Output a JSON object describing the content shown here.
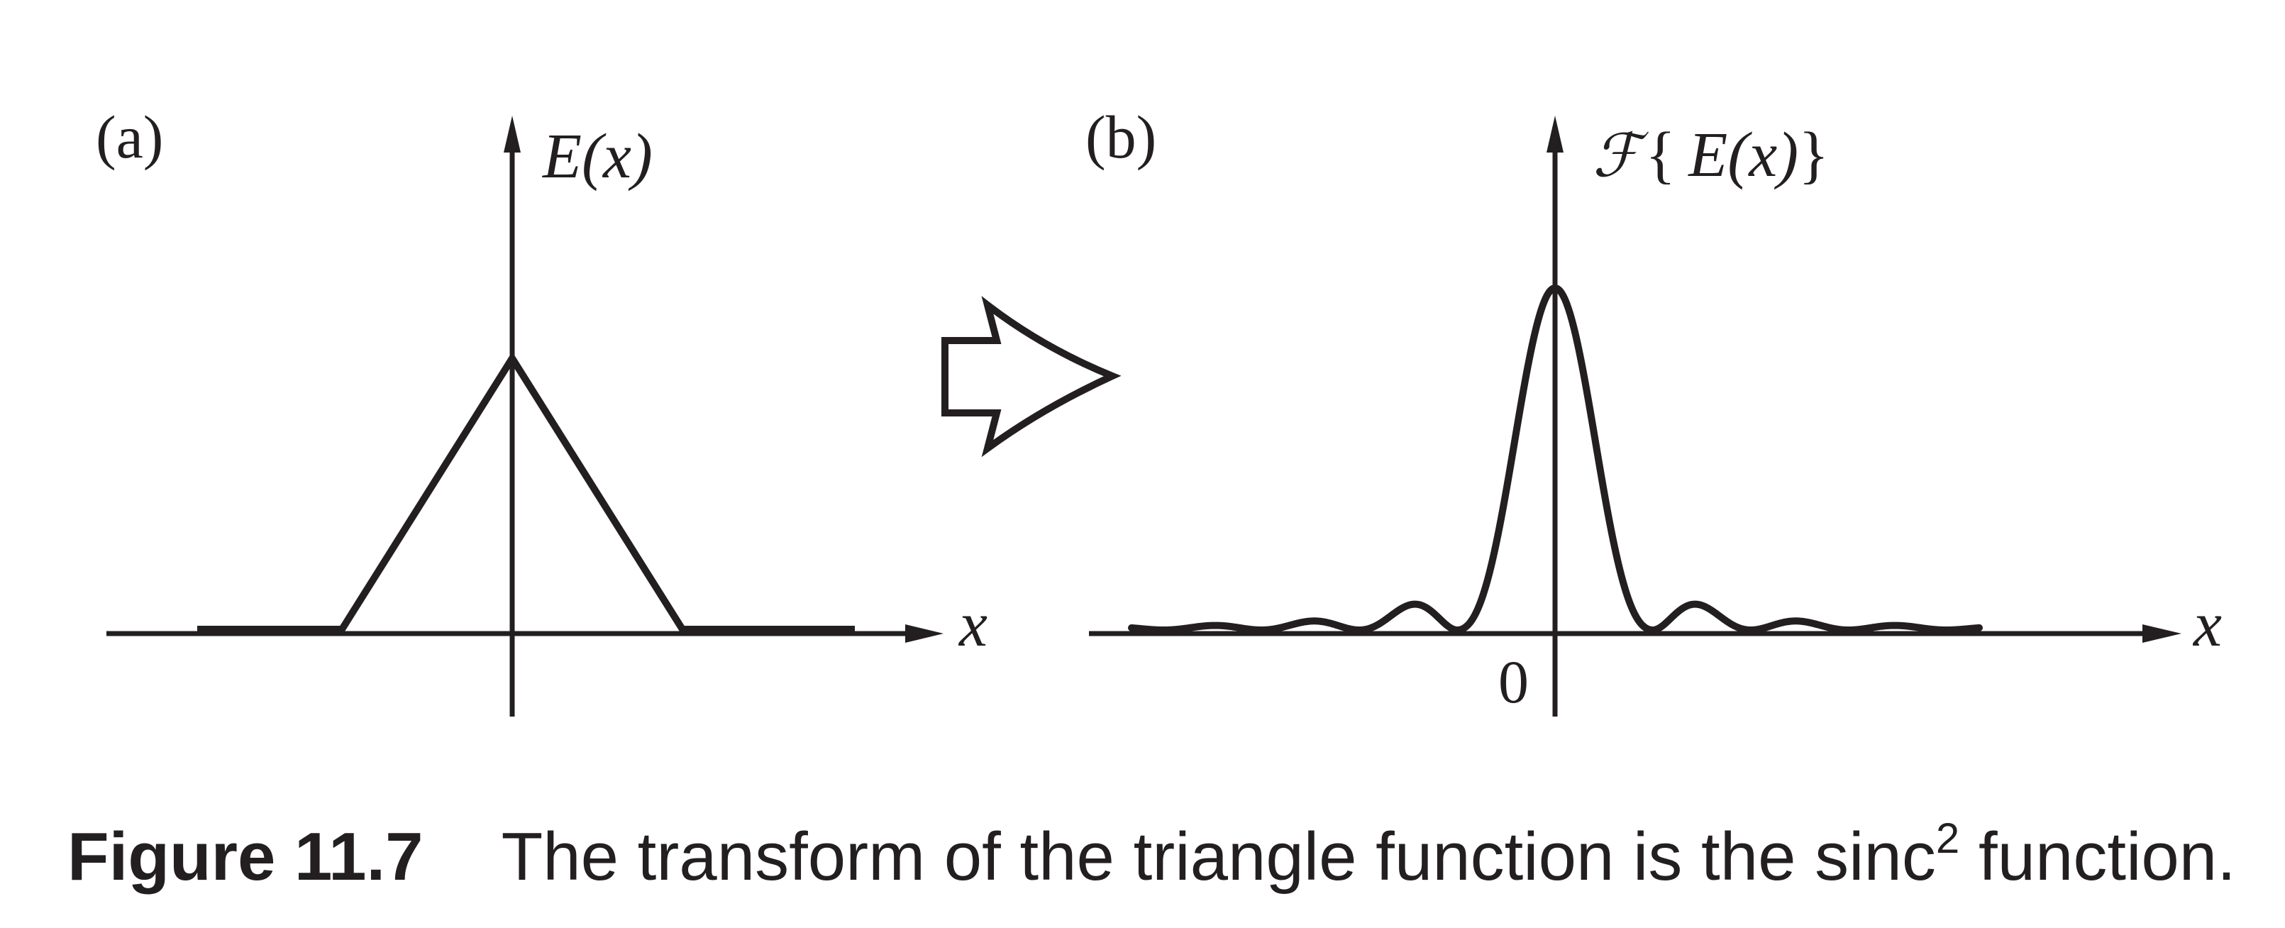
{
  "panel_a": {
    "label": "(a)",
    "y_axis_label_name": "E",
    "y_axis_label_rest": "(x)",
    "x_axis_label": "x"
  },
  "transform_arrow": {
    "icon": "hollow-right-arrow-icon"
  },
  "panel_b": {
    "label": "(b)",
    "y_axis_label_script": "ℱ",
    "y_axis_label_open": "{",
    "y_axis_label_name": "E",
    "y_axis_label_rest": "(x)",
    "y_axis_label_close": "}",
    "x_axis_label": "x",
    "origin_label": "0"
  },
  "caption": {
    "figure_number": "Figure 11.7",
    "text_before_superscript": "The transform of the triangle function is the sinc",
    "superscript": "2",
    "text_after_superscript": " function."
  },
  "colors": {
    "ink": "#231f20",
    "background": "#ffffff"
  }
}
